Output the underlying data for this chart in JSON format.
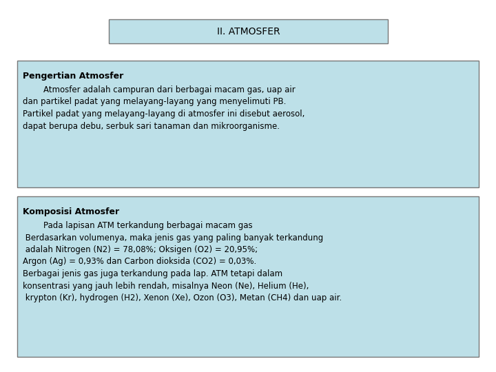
{
  "bg_color": "#ffffff",
  "title": "II. ATMOSFER",
  "title_box_color": "#bde0e8",
  "title_box_edge": "#777777",
  "title_fontsize": 10,
  "box1_color": "#bde0e8",
  "box1_edge": "#777777",
  "box1_title": "Pengertian Atmosfer",
  "box1_lines": [
    "        Atmosfer adalah campuran dari berbagai macam gas, uap air",
    "dan partikel padat yang melayang-layang yang menyelimuti PB.",
    "Partikel padat yang melayang-layang di atmosfer ini disebut aerosol,",
    "dapat berupa debu, serbuk sari tanaman dan mikroorganisme."
  ],
  "box2_color": "#bde0e8",
  "box2_edge": "#777777",
  "box2_title": "Komposisi Atmosfer",
  "box2_lines": [
    "        Pada lapisan ATM terkandung berbagai macam gas",
    " Berdasarkan volumenya, maka jenis gas yang paling banyak terkandung",
    " adalah Nitrogen (N2) = 78,08%; Oksigen (O2) = 20,95%;",
    "Argon (Ag) = 0,93% dan Carbon dioksida (CO2) = 0,03%.",
    "Berbagai jenis gas juga terkandung pada lap. ATM tetapi dalam",
    "konsentrasi yang jauh lebih rendah, misalnya Neon (Ne), Helium (He),",
    " krypton (Kr), hydrogen (H2), Xenon (Xe), Ozon (O3), Metan (CH4) dan uap air."
  ],
  "font_family": "DejaVu Sans",
  "body_fontsize": 8.5,
  "bold_fontsize": 9.0,
  "title_entry_fontsize": 9.5
}
